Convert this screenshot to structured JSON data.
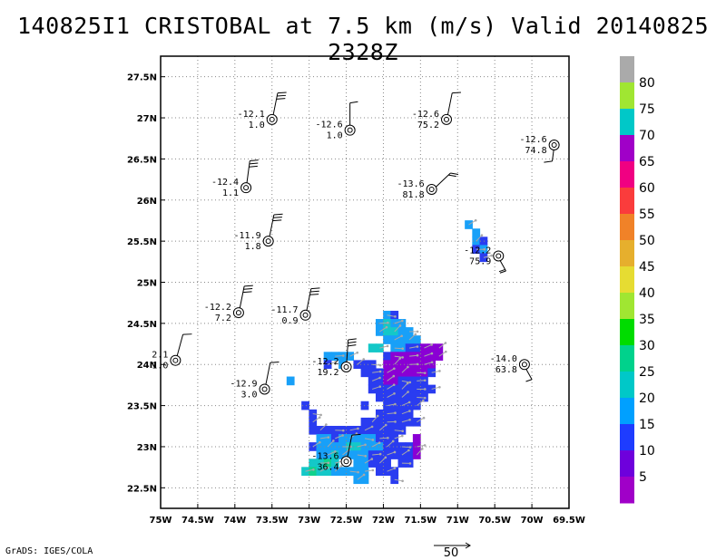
{
  "title": "140825I1 CRISTOBAL at 7.5 km (m/s) Valid 20140825 2328Z",
  "credit": "GrADS: IGES/COLA",
  "reference_vector_label": "50",
  "chart_data": {
    "type": "map",
    "x_ticks": [
      -75,
      -74.5,
      -74,
      -73.5,
      -73,
      -72.5,
      -72,
      -71.5,
      -71,
      -70.5,
      -70,
      -69.5
    ],
    "x_tick_labels": [
      "75W",
      "74.5W",
      "74W",
      "73.5W",
      "73W",
      "72.5W",
      "72W",
      "71.5W",
      "71W",
      "70.5W",
      "70W",
      "69.5W"
    ],
    "y_ticks": [
      22.5,
      23,
      23.5,
      24,
      24.5,
      25,
      25.5,
      26,
      26.5,
      27,
      27.5
    ],
    "y_tick_labels": [
      "22.5N",
      "23N",
      "23.5N",
      "24N",
      "24.5N",
      "25N",
      "25.5N",
      "26N",
      "26.5N",
      "27N",
      "27.5N"
    ],
    "xlim": [
      -75,
      -69.5
    ],
    "ylim": [
      22.25,
      27.75
    ],
    "grid": true,
    "colorbar": {
      "labels": [
        "5",
        "10",
        "15",
        "20",
        "25",
        "30",
        "35",
        "40",
        "45",
        "50",
        "55",
        "60",
        "65",
        "70",
        "75",
        "80"
      ],
      "colors": [
        "#a000c8",
        "#6e00dc",
        "#1e3cff",
        "#00a0ff",
        "#00c8c8",
        "#00d28c",
        "#00dc00",
        "#a0e632",
        "#e6dc32",
        "#e6af2d",
        "#f08228",
        "#fa3c3c",
        "#f00082",
        "#a000c8",
        "#00c8c8",
        "#a0e632",
        "#aaaaaa"
      ]
    },
    "observations": [
      {
        "lon": -73.5,
        "lat": 26.98,
        "temp": "-12.1",
        "val": "1.0",
        "barb_dir": 15,
        "barbs": 3
      },
      {
        "lon": -72.45,
        "lat": 26.85,
        "temp": "-12.6",
        "val": "1.0",
        "barb_dir": 0,
        "barbs": 1
      },
      {
        "lon": -71.15,
        "lat": 26.98,
        "temp": "-12.6",
        "val": "75.2",
        "barb_dir": 15,
        "barbs": 1
      },
      {
        "lon": -69.7,
        "lat": 26.67,
        "temp": "-12.6",
        "val": "74.8",
        "barb_dir": 185,
        "barbs": 1
      },
      {
        "lon": -73.85,
        "lat": 26.15,
        "temp": "-12.4",
        "val": "1.1",
        "barb_dir": 10,
        "barbs": 3
      },
      {
        "lon": -71.35,
        "lat": 26.13,
        "temp": "-13.6",
        "val": "81.8",
        "barb_dir": 60,
        "barbs": 2
      },
      {
        "lon": -73.55,
        "lat": 25.5,
        "temp": "-11.9",
        "val": "1.8",
        "barb_dir": 15,
        "barbs": 3
      },
      {
        "lon": -70.45,
        "lat": 25.32,
        "temp": "-12.2",
        "val": "75.9",
        "barb_dir": 160,
        "barbs": 2
      },
      {
        "lon": -73.95,
        "lat": 24.63,
        "temp": "-12.2",
        "val": "7.2",
        "barb_dir": 15,
        "barbs": 3
      },
      {
        "lon": -73.05,
        "lat": 24.6,
        "temp": "-11.7",
        "val": "0.9",
        "barb_dir": 15,
        "barbs": 3
      },
      {
        "lon": -74.8,
        "lat": 24.05,
        "temp": "2.1",
        "val": "1.0",
        "barb_dir": 20,
        "barbs": 1
      },
      {
        "lon": -72.5,
        "lat": 23.97,
        "temp": "-12.2",
        "val": "19.2",
        "barb_dir": 5,
        "barbs": 3
      },
      {
        "lon": -70.1,
        "lat": 24.0,
        "temp": "-14.0",
        "val": "63.8",
        "barb_dir": 160,
        "barbs": 1
      },
      {
        "lon": -73.6,
        "lat": 23.7,
        "temp": "-12.9",
        "val": "3.0",
        "barb_dir": 15,
        "barbs": 1
      },
      {
        "lon": -72.5,
        "lat": 22.82,
        "temp": "-13.6",
        "val": "36.4",
        "barb_dir": 15,
        "barbs": 1
      }
    ],
    "shaded_cells": [
      {
        "lon": -71.95,
        "lat": 24.6,
        "v": 15
      },
      {
        "lon": -71.85,
        "lat": 24.6,
        "v": 10
      },
      {
        "lon": -72.05,
        "lat": 24.5,
        "v": 15
      },
      {
        "lon": -71.95,
        "lat": 24.5,
        "v": 20
      },
      {
        "lon": -71.85,
        "lat": 24.5,
        "v": 15
      },
      {
        "lon": -71.75,
        "lat": 24.5,
        "v": 15
      },
      {
        "lon": -72.05,
        "lat": 24.4,
        "v": 15
      },
      {
        "lon": -71.95,
        "lat": 24.4,
        "v": 20
      },
      {
        "lon": -71.85,
        "lat": 24.4,
        "v": 20
      },
      {
        "lon": -71.75,
        "lat": 24.4,
        "v": 15
      },
      {
        "lon": -71.65,
        "lat": 24.4,
        "v": 15
      },
      {
        "lon": -72.15,
        "lat": 24.2,
        "v": 20
      },
      {
        "lon": -72.05,
        "lat": 24.2,
        "v": 20
      },
      {
        "lon": -71.95,
        "lat": 24.3,
        "v": 15
      },
      {
        "lon": -71.85,
        "lat": 24.3,
        "v": 15
      },
      {
        "lon": -71.75,
        "lat": 24.3,
        "v": 15
      },
      {
        "lon": -71.65,
        "lat": 24.3,
        "v": 15
      },
      {
        "lon": -71.55,
        "lat": 24.3,
        "v": 15
      },
      {
        "lon": -71.85,
        "lat": 24.2,
        "v": 15
      },
      {
        "lon": -71.75,
        "lat": 24.2,
        "v": 15
      },
      {
        "lon": -71.65,
        "lat": 24.2,
        "v": 10
      },
      {
        "lon": -71.55,
        "lat": 24.2,
        "v": 10
      },
      {
        "lon": -71.45,
        "lat": 24.2,
        "v": 5
      },
      {
        "lon": -71.35,
        "lat": 24.2,
        "v": 5
      },
      {
        "lon": -71.25,
        "lat": 24.2,
        "v": 5
      },
      {
        "lon": -71.95,
        "lat": 24.1,
        "v": 10
      },
      {
        "lon": -71.85,
        "lat": 24.1,
        "v": 5
      },
      {
        "lon": -71.75,
        "lat": 24.1,
        "v": 5
      },
      {
        "lon": -71.65,
        "lat": 24.1,
        "v": 5
      },
      {
        "lon": -71.55,
        "lat": 24.1,
        "v": 5
      },
      {
        "lon": -71.45,
        "lat": 24.1,
        "v": 5
      },
      {
        "lon": -71.35,
        "lat": 24.1,
        "v": 5
      },
      {
        "lon": -71.25,
        "lat": 24.1,
        "v": 5
      },
      {
        "lon": -71.95,
        "lat": 24.0,
        "v": 5
      },
      {
        "lon": -71.85,
        "lat": 24.0,
        "v": 5
      },
      {
        "lon": -71.75,
        "lat": 24.0,
        "v": 5
      },
      {
        "lon": -71.65,
        "lat": 24.0,
        "v": 5
      },
      {
        "lon": -71.55,
        "lat": 24.0,
        "v": 5
      },
      {
        "lon": -71.45,
        "lat": 24.0,
        "v": 5
      },
      {
        "lon": -71.35,
        "lat": 24.0,
        "v": 5
      },
      {
        "lon": -71.95,
        "lat": 23.9,
        "v": 5
      },
      {
        "lon": -71.85,
        "lat": 23.9,
        "v": 5
      },
      {
        "lon": -71.75,
        "lat": 23.9,
        "v": 5
      },
      {
        "lon": -71.65,
        "lat": 23.9,
        "v": 5
      },
      {
        "lon": -71.55,
        "lat": 23.9,
        "v": 5
      },
      {
        "lon": -71.45,
        "lat": 23.9,
        "v": 5
      },
      {
        "lon": -71.35,
        "lat": 23.9,
        "v": 10
      },
      {
        "lon": -72.55,
        "lat": 24.1,
        "v": 15
      },
      {
        "lon": -72.45,
        "lat": 24.1,
        "v": 15
      },
      {
        "lon": -72.55,
        "lat": 24.0,
        "v": 15
      },
      {
        "lon": -72.35,
        "lat": 24.0,
        "v": 10
      },
      {
        "lon": -72.25,
        "lat": 24.0,
        "v": 10
      },
      {
        "lon": -72.15,
        "lat": 24.0,
        "v": 10
      },
      {
        "lon": -72.25,
        "lat": 23.9,
        "v": 10
      },
      {
        "lon": -72.15,
        "lat": 23.9,
        "v": 10
      },
      {
        "lon": -72.05,
        "lat": 23.9,
        "v": 10
      },
      {
        "lon": -72.15,
        "lat": 23.8,
        "v": 10
      },
      {
        "lon": -72.05,
        "lat": 23.8,
        "v": 10
      },
      {
        "lon": -71.95,
        "lat": 23.8,
        "v": 5
      },
      {
        "lon": -71.85,
        "lat": 23.8,
        "v": 5
      },
      {
        "lon": -71.75,
        "lat": 23.8,
        "v": 10
      },
      {
        "lon": -71.65,
        "lat": 23.8,
        "v": 10
      },
      {
        "lon": -71.55,
        "lat": 23.8,
        "v": 10
      },
      {
        "lon": -71.45,
        "lat": 23.8,
        "v": 10
      },
      {
        "lon": -72.15,
        "lat": 23.7,
        "v": 10
      },
      {
        "lon": -72.05,
        "lat": 23.7,
        "v": 10
      },
      {
        "lon": -71.95,
        "lat": 23.7,
        "v": 10
      },
      {
        "lon": -71.85,
        "lat": 23.7,
        "v": 10
      },
      {
        "lon": -71.75,
        "lat": 23.7,
        "v": 10
      },
      {
        "lon": -71.65,
        "lat": 23.7,
        "v": 10
      },
      {
        "lon": -71.55,
        "lat": 23.7,
        "v": 10
      },
      {
        "lon": -71.45,
        "lat": 23.7,
        "v": 10
      },
      {
        "lon": -71.35,
        "lat": 23.7,
        "v": 10
      },
      {
        "lon": -72.05,
        "lat": 23.6,
        "v": 10
      },
      {
        "lon": -71.95,
        "lat": 23.6,
        "v": 10
      },
      {
        "lon": -71.85,
        "lat": 23.6,
        "v": 10
      },
      {
        "lon": -71.75,
        "lat": 23.6,
        "v": 10
      },
      {
        "lon": -71.65,
        "lat": 23.6,
        "v": 10
      },
      {
        "lon": -71.55,
        "lat": 23.6,
        "v": 10
      },
      {
        "lon": -71.45,
        "lat": 23.6,
        "v": 10
      },
      {
        "lon": -71.95,
        "lat": 23.5,
        "v": 10
      },
      {
        "lon": -71.85,
        "lat": 23.5,
        "v": 10
      },
      {
        "lon": -71.75,
        "lat": 23.5,
        "v": 10
      },
      {
        "lon": -71.65,
        "lat": 23.5,
        "v": 10
      },
      {
        "lon": -71.55,
        "lat": 23.5,
        "v": 10
      },
      {
        "lon": -73.05,
        "lat": 23.5,
        "v": 10
      },
      {
        "lon": -72.95,
        "lat": 23.4,
        "v": 10
      },
      {
        "lon": -72.05,
        "lat": 23.4,
        "v": 10
      },
      {
        "lon": -71.95,
        "lat": 23.4,
        "v": 10
      },
      {
        "lon": -71.85,
        "lat": 23.4,
        "v": 10
      },
      {
        "lon": -71.75,
        "lat": 23.4,
        "v": 10
      },
      {
        "lon": -71.65,
        "lat": 23.4,
        "v": 10
      },
      {
        "lon": -72.95,
        "lat": 23.3,
        "v": 10
      },
      {
        "lon": -72.25,
        "lat": 23.3,
        "v": 10
      },
      {
        "lon": -72.15,
        "lat": 23.3,
        "v": 10
      },
      {
        "lon": -72.05,
        "lat": 23.3,
        "v": 10
      },
      {
        "lon": -71.95,
        "lat": 23.3,
        "v": 10
      },
      {
        "lon": -71.85,
        "lat": 23.3,
        "v": 10
      },
      {
        "lon": -71.75,
        "lat": 23.3,
        "v": 10
      },
      {
        "lon": -71.65,
        "lat": 23.3,
        "v": 10
      },
      {
        "lon": -71.55,
        "lat": 23.3,
        "v": 10
      },
      {
        "lon": -72.95,
        "lat": 23.2,
        "v": 10
      },
      {
        "lon": -72.85,
        "lat": 23.2,
        "v": 10
      },
      {
        "lon": -72.75,
        "lat": 23.2,
        "v": 10
      },
      {
        "lon": -72.65,
        "lat": 23.2,
        "v": 10
      },
      {
        "lon": -72.55,
        "lat": 23.2,
        "v": 10
      },
      {
        "lon": -72.45,
        "lat": 23.2,
        "v": 10
      },
      {
        "lon": -72.35,
        "lat": 23.2,
        "v": 10
      },
      {
        "lon": -72.25,
        "lat": 23.2,
        "v": 10
      },
      {
        "lon": -72.15,
        "lat": 23.2,
        "v": 10
      },
      {
        "lon": -72.05,
        "lat": 23.2,
        "v": 10
      },
      {
        "lon": -71.95,
        "lat": 23.2,
        "v": 10
      },
      {
        "lon": -71.85,
        "lat": 23.2,
        "v": 10
      },
      {
        "lon": -71.75,
        "lat": 23.2,
        "v": 10
      },
      {
        "lon": -72.85,
        "lat": 23.1,
        "v": 15
      },
      {
        "lon": -72.75,
        "lat": 23.1,
        "v": 15
      },
      {
        "lon": -72.65,
        "lat": 23.1,
        "v": 10
      },
      {
        "lon": -72.55,
        "lat": 23.1,
        "v": 15
      },
      {
        "lon": -72.45,
        "lat": 23.1,
        "v": 15
      },
      {
        "lon": -72.35,
        "lat": 23.1,
        "v": 15
      },
      {
        "lon": -72.25,
        "lat": 23.1,
        "v": 15
      },
      {
        "lon": -72.15,
        "lat": 23.1,
        "v": 15
      },
      {
        "lon": -72.05,
        "lat": 23.1,
        "v": 10
      },
      {
        "lon": -71.95,
        "lat": 23.1,
        "v": 10
      },
      {
        "lon": -71.85,
        "lat": 23.1,
        "v": 10
      },
      {
        "lon": -71.55,
        "lat": 23.1,
        "v": 5
      },
      {
        "lon": -72.95,
        "lat": 23.0,
        "v": 10
      },
      {
        "lon": -72.85,
        "lat": 23.0,
        "v": 15
      },
      {
        "lon": -72.75,
        "lat": 23.0,
        "v": 15
      },
      {
        "lon": -72.65,
        "lat": 23.0,
        "v": 15
      },
      {
        "lon": -72.55,
        "lat": 23.0,
        "v": 15
      },
      {
        "lon": -72.45,
        "lat": 23.0,
        "v": 20
      },
      {
        "lon": -72.35,
        "lat": 23.0,
        "v": 20
      },
      {
        "lon": -72.25,
        "lat": 23.0,
        "v": 15
      },
      {
        "lon": -72.15,
        "lat": 23.0,
        "v": 15
      },
      {
        "lon": -72.05,
        "lat": 23.0,
        "v": 15
      },
      {
        "lon": -71.95,
        "lat": 23.0,
        "v": 10
      },
      {
        "lon": -71.85,
        "lat": 23.0,
        "v": 10
      },
      {
        "lon": -71.75,
        "lat": 23.0,
        "v": 10
      },
      {
        "lon": -71.65,
        "lat": 23.0,
        "v": 10
      },
      {
        "lon": -71.55,
        "lat": 23.0,
        "v": 5
      },
      {
        "lon": -72.85,
        "lat": 22.9,
        "v": 15
      },
      {
        "lon": -72.75,
        "lat": 22.9,
        "v": 15
      },
      {
        "lon": -72.65,
        "lat": 22.9,
        "v": 20
      },
      {
        "lon": -72.55,
        "lat": 22.9,
        "v": 15
      },
      {
        "lon": -72.45,
        "lat": 22.9,
        "v": 15
      },
      {
        "lon": -72.35,
        "lat": 22.9,
        "v": 15
      },
      {
        "lon": -72.25,
        "lat": 22.9,
        "v": 15
      },
      {
        "lon": -72.15,
        "lat": 22.9,
        "v": 10
      },
      {
        "lon": -72.05,
        "lat": 22.9,
        "v": 10
      },
      {
        "lon": -71.95,
        "lat": 22.9,
        "v": 10
      },
      {
        "lon": -71.85,
        "lat": 22.9,
        "v": 10
      },
      {
        "lon": -71.75,
        "lat": 22.9,
        "v": 10
      },
      {
        "lon": -71.65,
        "lat": 22.9,
        "v": 10
      },
      {
        "lon": -71.55,
        "lat": 22.9,
        "v": 5
      },
      {
        "lon": -72.95,
        "lat": 22.8,
        "v": 20
      },
      {
        "lon": -72.85,
        "lat": 22.8,
        "v": 20
      },
      {
        "lon": -72.75,
        "lat": 22.8,
        "v": 25
      },
      {
        "lon": -72.65,
        "lat": 22.8,
        "v": 20
      },
      {
        "lon": -72.35,
        "lat": 22.8,
        "v": 15
      },
      {
        "lon": -72.25,
        "lat": 22.8,
        "v": 15
      },
      {
        "lon": -72.15,
        "lat": 22.8,
        "v": 10
      },
      {
        "lon": -72.05,
        "lat": 22.8,
        "v": 10
      },
      {
        "lon": -71.95,
        "lat": 22.8,
        "v": 10
      },
      {
        "lon": -71.75,
        "lat": 22.8,
        "v": 10
      },
      {
        "lon": -71.65,
        "lat": 22.8,
        "v": 10
      },
      {
        "lon": -73.05,
        "lat": 22.7,
        "v": 20
      },
      {
        "lon": -72.95,
        "lat": 22.7,
        "v": 25
      },
      {
        "lon": -72.85,
        "lat": 22.7,
        "v": 20
      },
      {
        "lon": -72.75,
        "lat": 22.7,
        "v": 20
      },
      {
        "lon": -72.65,
        "lat": 22.7,
        "v": 15
      },
      {
        "lon": -72.55,
        "lat": 22.7,
        "v": 15
      },
      {
        "lon": -72.45,
        "lat": 22.7,
        "v": 15
      },
      {
        "lon": -72.35,
        "lat": 22.7,
        "v": 15
      },
      {
        "lon": -72.25,
        "lat": 22.7,
        "v": 15
      },
      {
        "lon": -72.05,
        "lat": 22.7,
        "v": 10
      },
      {
        "lon": -71.95,
        "lat": 22.7,
        "v": 10
      },
      {
        "lon": -71.85,
        "lat": 22.7,
        "v": 10
      },
      {
        "lon": -72.35,
        "lat": 22.6,
        "v": 15
      },
      {
        "lon": -72.25,
        "lat": 22.6,
        "v": 15
      },
      {
        "lon": -71.85,
        "lat": 22.6,
        "v": 10
      },
      {
        "lon": -73.25,
        "lat": 23.8,
        "v": 15
      },
      {
        "lon": -72.65,
        "lat": 24.1,
        "v": 15
      },
      {
        "lon": -72.75,
        "lat": 24.1,
        "v": 15
      },
      {
        "lon": -72.75,
        "lat": 24.0,
        "v": 10
      },
      {
        "lon": -72.25,
        "lat": 23.5,
        "v": 10
      },
      {
        "lon": -70.85,
        "lat": 25.7,
        "v": 15
      },
      {
        "lon": -70.75,
        "lat": 25.6,
        "v": 15
      },
      {
        "lon": -70.75,
        "lat": 25.5,
        "v": 15
      },
      {
        "lon": -70.65,
        "lat": 25.5,
        "v": 10
      },
      {
        "lon": -70.75,
        "lat": 25.4,
        "v": 10
      },
      {
        "lon": -70.65,
        "lat": 25.4,
        "v": 15
      },
      {
        "lon": -70.65,
        "lat": 25.3,
        "v": 10
      }
    ]
  }
}
